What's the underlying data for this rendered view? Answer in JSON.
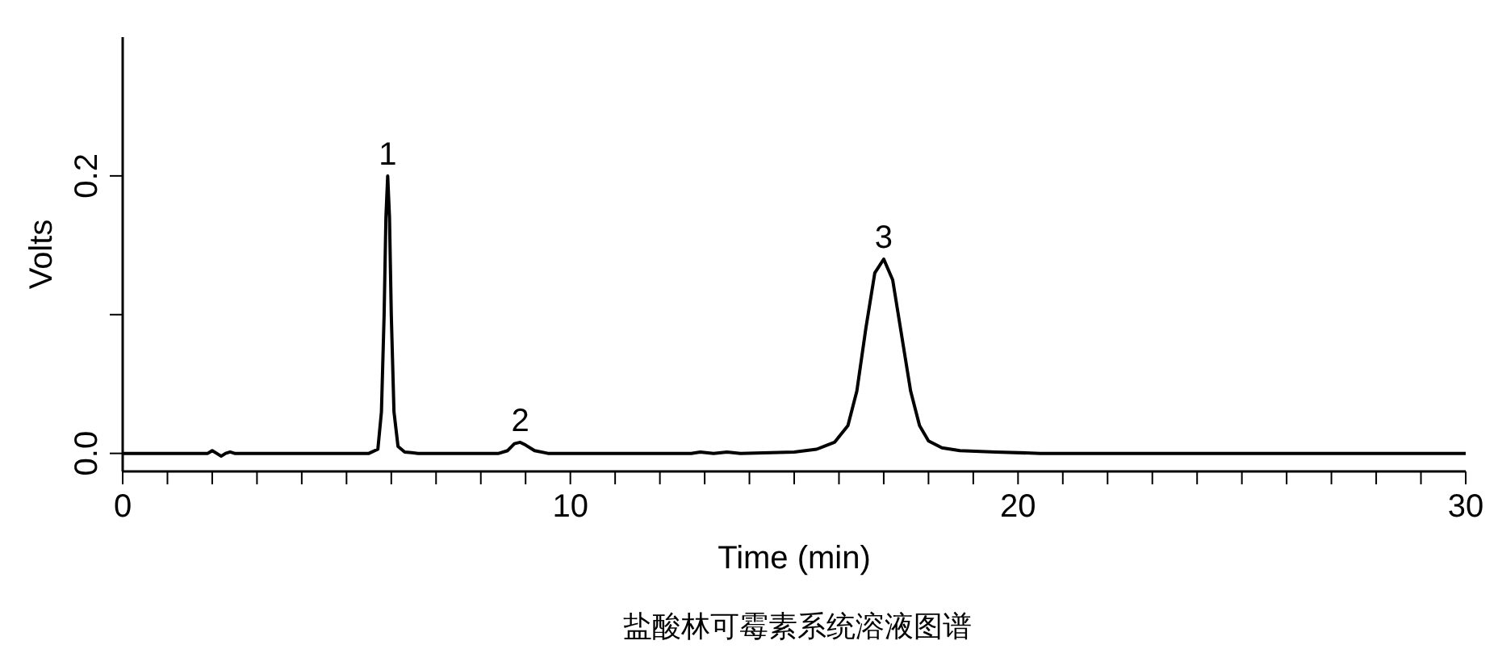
{
  "chart_data": {
    "type": "line",
    "xlabel": "Time (min)",
    "ylabel": "Volts",
    "annotations": [
      {
        "text": "1",
        "x": 5.92,
        "y": 0.2
      },
      {
        "text": "2",
        "x": 8.88,
        "y": 0.008
      },
      {
        "text": "3",
        "x": 17.0,
        "y": 0.14
      },
      "盐酸林可霉素系统溶液图谱"
    ],
    "series": [
      {
        "color": "#000000",
        "x": [
          0,
          1.9,
          2.0,
          2.1,
          2.2,
          2.3,
          2.4,
          2.5,
          5.5,
          5.7,
          5.78,
          5.84,
          5.88,
          5.92,
          5.96,
          6.0,
          6.06,
          6.15,
          6.3,
          6.6,
          8.4,
          8.6,
          8.75,
          8.88,
          9.0,
          9.2,
          9.5,
          12.7,
          12.9,
          13.2,
          13.5,
          13.8,
          15.0,
          15.5,
          15.9,
          16.2,
          16.4,
          16.6,
          16.8,
          17.0,
          17.2,
          17.4,
          17.6,
          17.8,
          18.0,
          18.3,
          18.7,
          19.5,
          20.5,
          30
        ],
        "values": [
          0,
          0,
          0.002,
          0,
          -0.002,
          0,
          0.001,
          0,
          0,
          0.003,
          0.03,
          0.1,
          0.17,
          0.2,
          0.17,
          0.1,
          0.03,
          0.005,
          0.001,
          0,
          0,
          0.002,
          0.007,
          0.008,
          0.006,
          0.002,
          0,
          0,
          0.001,
          0,
          0.001,
          0,
          0.001,
          0.003,
          0.008,
          0.02,
          0.045,
          0.09,
          0.13,
          0.14,
          0.125,
          0.085,
          0.045,
          0.02,
          0.009,
          0.004,
          0.002,
          0.001,
          0,
          0
        ]
      }
    ],
    "xlim": [
      0,
      30
    ],
    "xticks": [
      0,
      {
        "value": 1,
        "label": null
      },
      {
        "value": 2,
        "label": null
      },
      {
        "value": 3,
        "label": null
      },
      {
        "value": 4,
        "label": null
      },
      {
        "value": 5,
        "label": null
      },
      {
        "value": 6,
        "label": null
      },
      {
        "value": 7,
        "label": null
      },
      {
        "value": 8,
        "label": null
      },
      {
        "value": 9,
        "label": null
      },
      10,
      {
        "value": 11,
        "label": null
      },
      {
        "value": 12,
        "label": null
      },
      {
        "value": 13,
        "label": null
      },
      {
        "value": 14,
        "label": null
      },
      {
        "value": 15,
        "label": null
      },
      {
        "value": 16,
        "label": null
      },
      {
        "value": 17,
        "label": null
      },
      {
        "value": 18,
        "label": null
      },
      {
        "value": 19,
        "label": null
      },
      20,
      {
        "value": 21,
        "label": null
      },
      {
        "value": 22,
        "label": null
      },
      {
        "value": 23,
        "label": null
      },
      {
        "value": 24,
        "label": null
      },
      {
        "value": 25,
        "label": null
      },
      {
        "value": 26,
        "label": null
      },
      {
        "value": 27,
        "label": null
      },
      {
        "value": 28,
        "label": null
      },
      {
        "value": 29,
        "label": null
      },
      30
    ],
    "ylim": [
      -0.013,
      0.3
    ],
    "yticks": [
      {
        "value": 0,
        "label": "0.0"
      },
      {
        "value": 0.1,
        "label": null
      },
      {
        "value": 0.2,
        "label": "0.2"
      }
    ],
    "grid": false,
    "legend": false,
    "marker": "none",
    "line_style": "solid"
  }
}
